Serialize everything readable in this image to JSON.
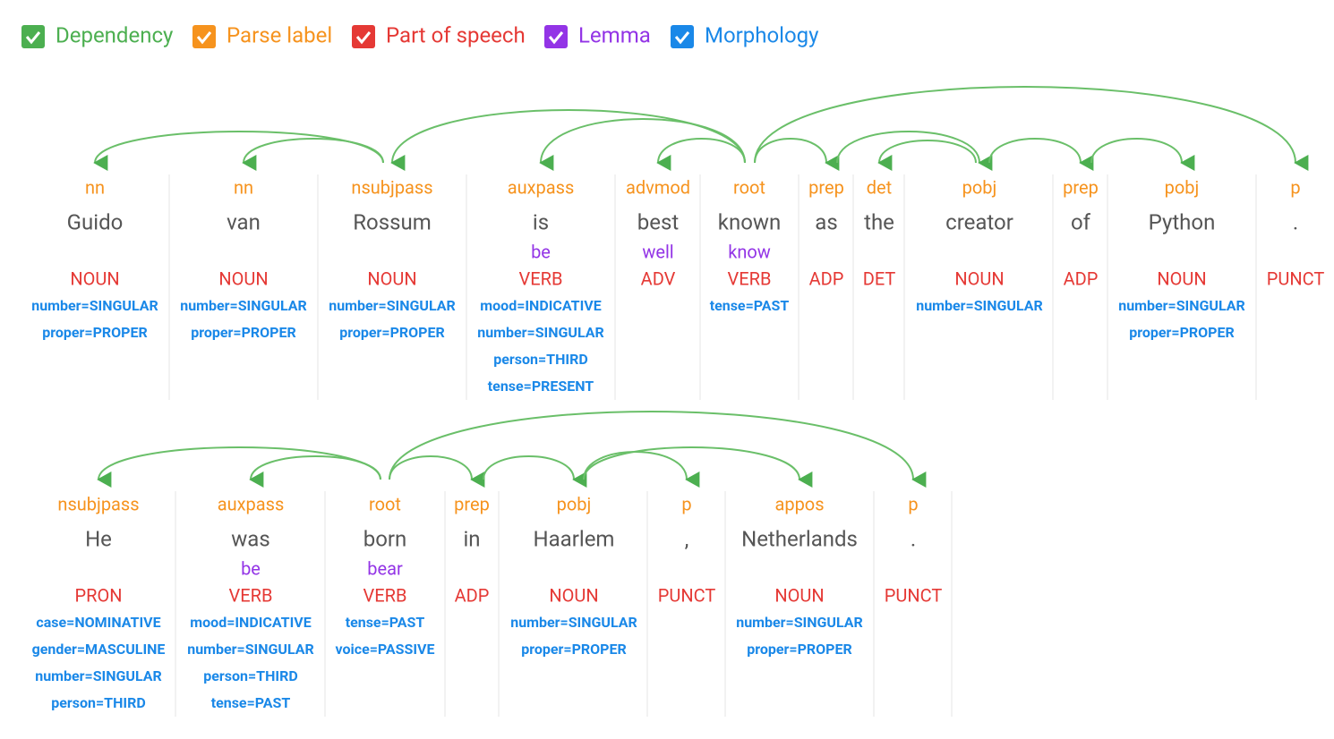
{
  "legend": [
    {
      "label": "Dependency",
      "color": "#4caf50"
    },
    {
      "label": "Parse label",
      "color": "#f6931e"
    },
    {
      "label": "Part of speech",
      "color": "#e53935"
    },
    {
      "label": "Lemma",
      "color": "#9334e6"
    },
    {
      "label": "Morphology",
      "color": "#1a88e8"
    }
  ],
  "sentences": [
    {
      "tokens": [
        {
          "label": "nn",
          "word": "Guido",
          "pos": "NOUN",
          "morphology": [
            "number=SINGULAR",
            "proper=PROPER"
          ]
        },
        {
          "label": "nn",
          "word": "van",
          "pos": "NOUN",
          "morphology": [
            "number=SINGULAR",
            "proper=PROPER"
          ]
        },
        {
          "label": "nsubjpass",
          "word": "Rossum",
          "pos": "NOUN",
          "morphology": [
            "number=SINGULAR",
            "proper=PROPER"
          ]
        },
        {
          "label": "auxpass",
          "word": "is",
          "lemma": "be",
          "pos": "VERB",
          "morphology": [
            "mood=INDICATIVE",
            "number=SINGULAR",
            "person=THIRD",
            "tense=PRESENT"
          ]
        },
        {
          "label": "advmod",
          "word": "best",
          "lemma": "well",
          "pos": "ADV",
          "morphology": []
        },
        {
          "label": "root",
          "word": "known",
          "lemma": "know",
          "pos": "VERB",
          "morphology": [
            "tense=PAST"
          ]
        },
        {
          "label": "prep",
          "word": "as",
          "pos": "ADP",
          "morphology": []
        },
        {
          "label": "det",
          "word": "the",
          "pos": "DET",
          "morphology": []
        },
        {
          "label": "pobj",
          "word": "creator",
          "pos": "NOUN",
          "morphology": [
            "number=SINGULAR"
          ]
        },
        {
          "label": "prep",
          "word": "of",
          "pos": "ADP",
          "morphology": []
        },
        {
          "label": "pobj",
          "word": "Python",
          "pos": "NOUN",
          "morphology": [
            "number=SINGULAR",
            "proper=PROPER"
          ]
        },
        {
          "label": "p",
          "word": ".",
          "pos": "PUNCT",
          "morphology": []
        }
      ]
    },
    {
      "tokens": [
        {
          "label": "nsubjpass",
          "word": "He",
          "pos": "PRON",
          "morphology": [
            "case=NOMINATIVE",
            "gender=MASCULINE",
            "number=SINGULAR",
            "person=THIRD"
          ]
        },
        {
          "label": "auxpass",
          "word": "was",
          "lemma": "be",
          "pos": "VERB",
          "morphology": [
            "mood=INDICATIVE",
            "number=SINGULAR",
            "person=THIRD",
            "tense=PAST"
          ]
        },
        {
          "label": "root",
          "word": "born",
          "lemma": "bear",
          "pos": "VERB",
          "morphology": [
            "tense=PAST",
            "voice=PASSIVE"
          ]
        },
        {
          "label": "prep",
          "word": "in",
          "pos": "ADP",
          "morphology": []
        },
        {
          "label": "pobj",
          "word": "Haarlem",
          "pos": "NOUN",
          "morphology": [
            "number=SINGULAR",
            "proper=PROPER"
          ]
        },
        {
          "label": "p",
          "word": ",",
          "pos": "PUNCT",
          "morphology": []
        },
        {
          "label": "appos",
          "word": "Netherlands",
          "pos": "NOUN",
          "morphology": [
            "number=SINGULAR",
            "proper=PROPER"
          ]
        },
        {
          "label": "p",
          "word": ".",
          "pos": "PUNCT",
          "morphology": []
        }
      ]
    }
  ]
}
